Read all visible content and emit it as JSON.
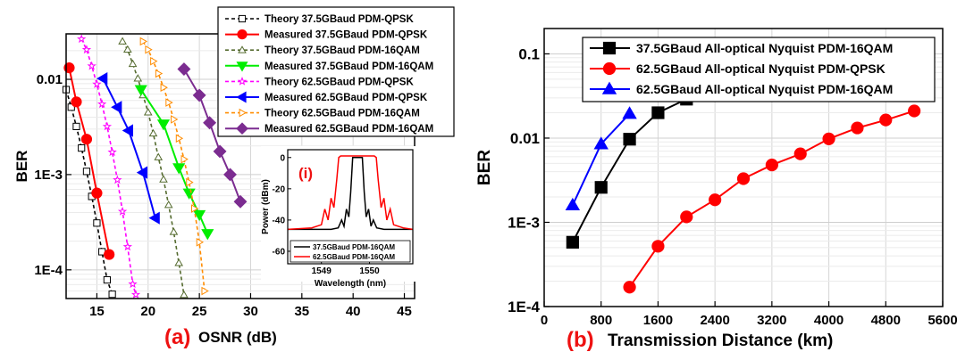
{
  "chart_data": [
    {
      "type": "line",
      "panel_label": "(a)",
      "xlabel": "OSNR  (dB)",
      "ylabel": "BER",
      "xscale": "linear",
      "yscale": "log",
      "xlim": [
        12,
        46
      ],
      "ylim": [
        5e-05,
        0.03
      ],
      "xticks": [
        "15",
        "20",
        "25",
        "30",
        "35",
        "40",
        "45"
      ],
      "yticks": [
        "1E-4",
        "1E-3",
        "0.01"
      ],
      "grid": true,
      "legend_position": "top-right",
      "series": [
        {
          "name": "Theory 37.5GBaud PDM-QPSK",
          "color": "#000000",
          "dash": "dash",
          "marker": "square-open",
          "x": [
            12.0,
            12.5,
            13.0,
            13.5,
            14.0,
            14.5,
            15.0,
            15.5,
            16.0,
            16.5
          ],
          "y": [
            0.0078,
            0.0051,
            0.0032,
            0.0019,
            0.00108,
            0.00059,
            0.00031,
            0.000155,
            7.85e-05,
            5.55e-05
          ]
        },
        {
          "name": "Measured 37.5GBaud PDM-QPSK",
          "color": "#ff0000",
          "dash": "solid",
          "marker": "circle",
          "x": [
            12.3,
            13.0,
            14.0,
            15.0,
            16.2
          ],
          "y": [
            0.0132,
            0.0058,
            0.00235,
            0.00064,
            0.000145
          ]
        },
        {
          "name": "Theory 37.5GBaud PDM-16QAM",
          "color": "#556b2f",
          "dash": "dash",
          "marker": "triangle-open",
          "x": [
            17.5,
            18.0,
            18.5,
            19.0,
            19.5,
            20.0,
            20.5,
            21.0,
            21.5,
            22.0,
            22.5,
            23.0,
            23.5
          ],
          "y": [
            0.025,
            0.0205,
            0.0145,
            0.0102,
            0.0068,
            0.0045,
            0.0027,
            0.00152,
            0.00089,
            0.00048,
            0.00025,
            0.000118,
            5.45e-05
          ]
        },
        {
          "name": "Measured 37.5GBaud PDM-16QAM",
          "color": "#00ee00",
          "dash": "solid",
          "marker": "triangle-down",
          "x": [
            19.3,
            21.5,
            23.0,
            24.0,
            25.0,
            25.8
          ],
          "y": [
            0.0078,
            0.0034,
            0.00118,
            0.00064,
            0.00038,
            0.00024
          ]
        },
        {
          "name": "Theory 62.5GBaud PDM-QPSK",
          "color": "#ff00ff",
          "dash": "dash",
          "marker": "star-open",
          "x": [
            13.5,
            14.0,
            14.5,
            15.0,
            15.5,
            16.0,
            16.5,
            17.0,
            17.5,
            18.0,
            18.5,
            18.8
          ],
          "y": [
            0.0265,
            0.0205,
            0.0138,
            0.0089,
            0.0055,
            0.0032,
            0.00172,
            0.00088,
            0.00041,
            0.000175,
            7.1e-05,
            5.5e-05
          ]
        },
        {
          "name": "Measured 62.5GBaud PDM-QPSK",
          "color": "#0000ff",
          "dash": "solid",
          "marker": "triangle-left",
          "x": [
            15.6,
            17.0,
            18.1,
            19.5,
            20.7
          ],
          "y": [
            0.0102,
            0.0051,
            0.0029,
            0.00105,
            0.00035
          ]
        },
        {
          "name": "Theory 62.5GBaud PDM-16QAM",
          "color": "#ff8c00",
          "dash": "dash",
          "marker": "triangle-right-open",
          "x": [
            19.5,
            20.0,
            20.5,
            21.0,
            21.5,
            22.0,
            22.5,
            23.0,
            23.5,
            24.0,
            24.5,
            25.0,
            25.5
          ],
          "y": [
            0.025,
            0.0205,
            0.0155,
            0.0115,
            0.0082,
            0.0057,
            0.0038,
            0.0024,
            0.00145,
            0.00083,
            0.00044,
            0.000195,
            6e-05
          ]
        },
        {
          "name": "Measured 62.5GBaud PDM-16QAM",
          "color": "#7b2c90",
          "dash": "solid",
          "marker": "diamond",
          "x": [
            23.5,
            25.0,
            26.0,
            27.0,
            28.0,
            29.0
          ],
          "y": [
            0.0128,
            0.0068,
            0.0035,
            0.00175,
            0.001,
            0.00052
          ]
        }
      ]
    },
    {
      "type": "line",
      "panel_label": "(i)",
      "xlabel": "Wavelength  (nm)",
      "ylabel": "Power  (dBm)",
      "xlim": [
        1548.3,
        1550.9
      ],
      "ylim": [
        -68,
        5
      ],
      "xticks": [
        "1549",
        "1550"
      ],
      "yticks": [
        "0",
        "-20",
        "-40",
        "-60"
      ],
      "legend_position": "bottom",
      "series": [
        {
          "name": "37.5GBaud PDM-16QAM",
          "color": "#000000",
          "x": [
            1548.3,
            1549.2,
            1549.35,
            1549.42,
            1549.47,
            1549.52,
            1549.57,
            1549.61,
            1549.65,
            1549.85,
            1549.89,
            1549.93,
            1549.98,
            1550.03,
            1550.08,
            1550.15,
            1550.3,
            1550.9
          ],
          "y": [
            -46,
            -46,
            -45,
            -40,
            -44,
            -33,
            -38,
            -22,
            0,
            0,
            -22,
            -38,
            -33,
            -44,
            -40,
            -45,
            -46,
            -46
          ]
        },
        {
          "name": "62.5GBaud PDM-16QAM",
          "color": "#ff0000",
          "x": [
            1548.3,
            1548.8,
            1549.0,
            1549.07,
            1549.14,
            1549.2,
            1549.26,
            1549.32,
            1549.36,
            1549.4,
            1550.1,
            1550.14,
            1550.18,
            1550.24,
            1550.3,
            1550.36,
            1550.43,
            1550.5,
            1550.7,
            1550.9
          ],
          "y": [
            -46,
            -45,
            -43,
            -33,
            -40,
            -26,
            -32,
            -14,
            0,
            1,
            1,
            0,
            -14,
            -32,
            -26,
            -40,
            -33,
            -43,
            -45,
            -46
          ]
        }
      ]
    },
    {
      "type": "line",
      "panel_label": "(b)",
      "xlabel": "Transmission Distance  (km)",
      "ylabel": "BER",
      "xscale": "linear",
      "yscale": "log",
      "xlim": [
        0,
        5600
      ],
      "ylim": [
        0.0001,
        0.2
      ],
      "xticks": [
        "0",
        "800",
        "1600",
        "2400",
        "3200",
        "4000",
        "4800",
        "5600"
      ],
      "yticks": [
        "1E-4",
        "1E-3",
        "0.01",
        "0.1"
      ],
      "grid": true,
      "legend_position": "top",
      "series": [
        {
          "name": "37.5GBaud All-optical Nyquist PDM-16QAM",
          "color": "#000000",
          "marker": "square",
          "x": [
            400,
            800,
            1200,
            1600,
            2000
          ],
          "y": [
            0.00058,
            0.0026,
            0.0097,
            0.02,
            0.029
          ]
        },
        {
          "name": "62.5GBaud All-optical Nyquist PDM-QPSK",
          "color": "#ff0000",
          "marker": "circle",
          "x": [
            1200,
            1600,
            2000,
            2400,
            2800,
            3200,
            3600,
            4000,
            4400,
            4800,
            5200
          ],
          "y": [
            0.00017,
            0.00052,
            0.00116,
            0.00185,
            0.0033,
            0.0048,
            0.0065,
            0.0098,
            0.0132,
            0.0164,
            0.021
          ]
        },
        {
          "name": "62.5GBaud All-optical Nyquist PDM-16QAM",
          "color": "#0000ff",
          "marker": "triangle",
          "x": [
            400,
            800,
            1200
          ],
          "y": [
            0.0016,
            0.0085,
            0.0195
          ]
        }
      ]
    }
  ]
}
